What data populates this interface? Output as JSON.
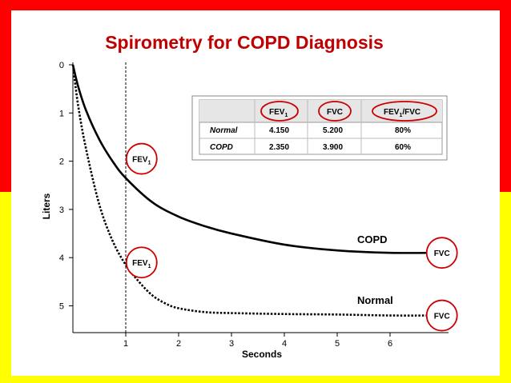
{
  "slide": {
    "title": "Spirometry for COPD Diagnosis",
    "colors": {
      "top_band": "#ff0000",
      "bottom_band": "#ffff00",
      "title": "#c00000",
      "circle": "#cc0000"
    }
  },
  "chart_data": {
    "type": "line",
    "title": "",
    "xlabel": "Seconds",
    "ylabel": "Liters",
    "xlim": [
      0,
      7
    ],
    "ylim": [
      0,
      5.5
    ],
    "y_inverted": true,
    "x_ticks": [
      "1",
      "2",
      "3",
      "4",
      "5",
      "6"
    ],
    "y_ticks": [
      "0",
      "1",
      "2",
      "3",
      "4",
      "5"
    ],
    "reference_line": {
      "x": 1,
      "style": "dashed"
    },
    "series": [
      {
        "name": "COPD",
        "style": "solid",
        "x": [
          0,
          0.1,
          0.25,
          0.5,
          0.75,
          1.0,
          1.5,
          2.0,
          2.5,
          3.0,
          4.0,
          5.0,
          6.0,
          6.9
        ],
        "y": [
          0.0,
          0.45,
          0.95,
          1.55,
          2.0,
          2.35,
          2.85,
          3.15,
          3.35,
          3.5,
          3.73,
          3.85,
          3.9,
          3.9
        ]
      },
      {
        "name": "Normal",
        "style": "dotted",
        "x": [
          0,
          0.1,
          0.25,
          0.5,
          0.75,
          1.0,
          1.25,
          1.5,
          1.75,
          2.0,
          2.5,
          3.0,
          4.0,
          5.0,
          6.0,
          6.9
        ],
        "y": [
          0.0,
          0.85,
          1.75,
          2.9,
          3.65,
          4.15,
          4.5,
          4.78,
          4.95,
          5.05,
          5.13,
          5.15,
          5.17,
          5.18,
          5.2,
          5.2
        ]
      }
    ],
    "annotations": [
      {
        "text_main": "FEV",
        "text_sub": "1",
        "x": 1.3,
        "y": 1.95
      },
      {
        "text_main": "FEV",
        "text_sub": "1",
        "x": 1.3,
        "y": 4.1
      },
      {
        "text": "FVC",
        "x": 6.95,
        "y": 3.9
      },
      {
        "text": "FVC",
        "x": 6.95,
        "y": 5.2
      }
    ],
    "table": {
      "headers": [
        {
          "main": "",
          "sub": ""
        },
        {
          "main": "FEV",
          "sub": "1"
        },
        {
          "main": "FVC",
          "sub": ""
        },
        {
          "main": "FEV",
          "sub": "1",
          "tail": "/FVC"
        }
      ],
      "rows": [
        [
          "Normal",
          "4.150",
          "5.200",
          "80%"
        ],
        [
          "COPD",
          "2.350",
          "3.900",
          "60%"
        ]
      ]
    }
  }
}
